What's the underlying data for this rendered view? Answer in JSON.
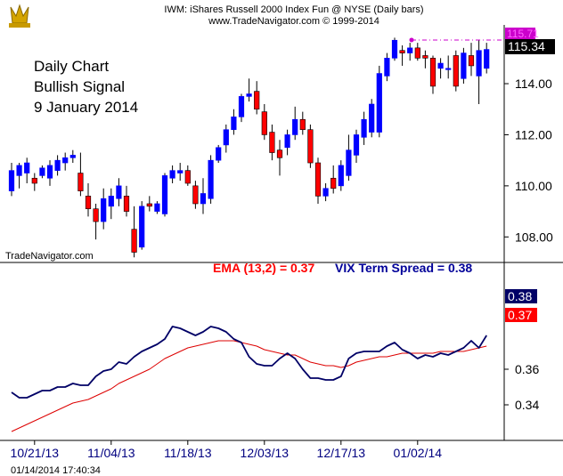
{
  "header": {
    "title": "IWM:  iShares Russell 2000 Index Fun @ NYSE  (Daily bars)",
    "copyright": "www.TradeNavigator.com © 1999-2014"
  },
  "annotation": [
    "Daily Chart",
    "Bullish Signal",
    "9 January 2014"
  ],
  "watermark": "TradeNavigator.com",
  "timestamp": "01/14/2014 17:40:34",
  "colors": {
    "up_bar": "#0000ff",
    "down_bar": "#ff0000",
    "vix_line": "#000066",
    "ema_line": "#dd0000",
    "ema_label": "#ff0000",
    "vix_label": "#000099",
    "high_marker": "#cc00cc",
    "current_badge": "#000000"
  },
  "chart_data": [
    {
      "type": "candlestick",
      "title": "IWM:  iShares Russell 2000 Index Fun @ NYSE  (Daily bars)",
      "y_ticks": [
        "108.00",
        "110.00",
        "112.00",
        "114.00"
      ],
      "ylim": [
        107.0,
        116.3
      ],
      "x_ticks": [
        "10/21/13",
        "11/04/13",
        "11/18/13",
        "12/03/13",
        "12/17/13",
        "01/02/14"
      ],
      "price_labels": {
        "last": "115.34",
        "high": "115.71"
      },
      "bars": [
        {
          "d": "10/16/13",
          "o": 109.8,
          "h": 110.9,
          "l": 109.6,
          "c": 110.6
        },
        {
          "d": "10/17/13",
          "o": 110.4,
          "h": 110.9,
          "l": 109.9,
          "c": 110.8
        },
        {
          "d": "10/18/13",
          "o": 110.5,
          "h": 111.1,
          "l": 110.1,
          "c": 110.9
        },
        {
          "d": "10/21/13",
          "o": 110.3,
          "h": 110.5,
          "l": 109.8,
          "c": 110.1
        },
        {
          "d": "10/22/13",
          "o": 110.4,
          "h": 110.8,
          "l": 110.3,
          "c": 110.7
        },
        {
          "d": "10/23/13",
          "o": 110.3,
          "h": 111.0,
          "l": 110.0,
          "c": 110.8
        },
        {
          "d": "10/24/13",
          "o": 110.6,
          "h": 111.2,
          "l": 110.4,
          "c": 111.0
        },
        {
          "d": "10/25/13",
          "o": 110.9,
          "h": 111.3,
          "l": 110.6,
          "c": 111.1
        },
        {
          "d": "10/28/13",
          "o": 111.1,
          "h": 111.4,
          "l": 110.9,
          "c": 111.2
        },
        {
          "d": "10/29/13",
          "o": 110.5,
          "h": 111.3,
          "l": 109.6,
          "c": 109.8
        },
        {
          "d": "10/30/13",
          "o": 109.6,
          "h": 110.1,
          "l": 108.8,
          "c": 109.1
        },
        {
          "d": "10/31/13",
          "o": 109.1,
          "h": 109.3,
          "l": 107.9,
          "c": 108.6
        },
        {
          "d": "11/01/13",
          "o": 108.6,
          "h": 109.9,
          "l": 108.3,
          "c": 109.5
        },
        {
          "d": "11/04/13",
          "o": 109.2,
          "h": 109.9,
          "l": 108.7,
          "c": 109.6
        },
        {
          "d": "11/05/13",
          "o": 109.5,
          "h": 110.3,
          "l": 109.2,
          "c": 110.0
        },
        {
          "d": "11/06/13",
          "o": 109.6,
          "h": 110.0,
          "l": 108.8,
          "c": 109.0
        },
        {
          "d": "11/07/13",
          "o": 108.3,
          "h": 109.2,
          "l": 107.2,
          "c": 107.4
        },
        {
          "d": "11/08/13",
          "o": 107.6,
          "h": 109.4,
          "l": 107.5,
          "c": 109.2
        },
        {
          "d": "11/11/13",
          "o": 109.3,
          "h": 109.6,
          "l": 109.0,
          "c": 109.2
        },
        {
          "d": "11/12/13",
          "o": 109.0,
          "h": 109.4,
          "l": 108.9,
          "c": 109.3
        },
        {
          "d": "11/13/13",
          "o": 108.9,
          "h": 110.5,
          "l": 108.8,
          "c": 110.4
        },
        {
          "d": "11/14/13",
          "o": 110.3,
          "h": 110.8,
          "l": 110.1,
          "c": 110.6
        },
        {
          "d": "11/15/13",
          "o": 110.5,
          "h": 110.9,
          "l": 110.2,
          "c": 110.6
        },
        {
          "d": "11/18/13",
          "o": 110.6,
          "h": 110.8,
          "l": 110.0,
          "c": 110.1
        },
        {
          "d": "11/19/13",
          "o": 110.0,
          "h": 110.2,
          "l": 109.1,
          "c": 109.3
        },
        {
          "d": "11/20/13",
          "o": 109.3,
          "h": 110.3,
          "l": 108.9,
          "c": 109.7
        },
        {
          "d": "11/21/13",
          "o": 109.5,
          "h": 111.2,
          "l": 109.3,
          "c": 111.0
        },
        {
          "d": "11/22/13",
          "o": 111.0,
          "h": 111.6,
          "l": 110.9,
          "c": 111.5
        },
        {
          "d": "11/25/13",
          "o": 111.6,
          "h": 112.4,
          "l": 111.3,
          "c": 112.2
        },
        {
          "d": "11/26/13",
          "o": 112.2,
          "h": 113.0,
          "l": 112.0,
          "c": 112.7
        },
        {
          "d": "11/27/13",
          "o": 112.7,
          "h": 113.6,
          "l": 112.5,
          "c": 113.5
        },
        {
          "d": "11/29/13",
          "o": 113.5,
          "h": 114.2,
          "l": 113.3,
          "c": 113.6
        },
        {
          "d": "12/02/13",
          "o": 113.7,
          "h": 114.1,
          "l": 112.8,
          "c": 113.0
        },
        {
          "d": "12/03/13",
          "o": 112.9,
          "h": 113.2,
          "l": 111.8,
          "c": 112.0
        },
        {
          "d": "12/04/13",
          "o": 112.1,
          "h": 112.4,
          "l": 111.0,
          "c": 111.3
        },
        {
          "d": "12/05/13",
          "o": 111.4,
          "h": 111.8,
          "l": 110.4,
          "c": 111.1
        },
        {
          "d": "12/06/13",
          "o": 111.5,
          "h": 112.2,
          "l": 111.2,
          "c": 112.0
        },
        {
          "d": "12/09/13",
          "o": 112.0,
          "h": 113.1,
          "l": 111.8,
          "c": 112.6
        },
        {
          "d": "12/10/13",
          "o": 112.6,
          "h": 112.9,
          "l": 112.0,
          "c": 112.2
        },
        {
          "d": "12/11/13",
          "o": 112.2,
          "h": 112.4,
          "l": 110.7,
          "c": 110.9
        },
        {
          "d": "12/12/13",
          "o": 110.9,
          "h": 111.1,
          "l": 109.3,
          "c": 109.6
        },
        {
          "d": "12/13/13",
          "o": 109.6,
          "h": 110.1,
          "l": 109.4,
          "c": 109.9
        },
        {
          "d": "12/16/13",
          "o": 110.3,
          "h": 110.8,
          "l": 109.7,
          "c": 109.9
        },
        {
          "d": "12/17/13",
          "o": 110.0,
          "h": 111.0,
          "l": 109.8,
          "c": 110.8
        },
        {
          "d": "12/18/13",
          "o": 110.4,
          "h": 112.0,
          "l": 110.2,
          "c": 111.4
        },
        {
          "d": "12/19/13",
          "o": 111.2,
          "h": 112.2,
          "l": 110.9,
          "c": 112.0
        },
        {
          "d": "12/20/13",
          "o": 111.9,
          "h": 112.9,
          "l": 111.6,
          "c": 112.6
        },
        {
          "d": "12/23/13",
          "o": 112.1,
          "h": 113.4,
          "l": 111.9,
          "c": 113.2
        },
        {
          "d": "12/24/13",
          "o": 112.1,
          "h": 114.7,
          "l": 111.9,
          "c": 114.4
        },
        {
          "d": "12/26/13",
          "o": 114.3,
          "h": 115.2,
          "l": 114.1,
          "c": 115.0
        },
        {
          "d": "12/27/13",
          "o": 115.0,
          "h": 115.8,
          "l": 114.9,
          "c": 115.7
        },
        {
          "d": "12/30/13",
          "o": 115.3,
          "h": 115.5,
          "l": 114.7,
          "c": 115.2
        },
        {
          "d": "12/31/13",
          "o": 115.2,
          "h": 115.6,
          "l": 114.9,
          "c": 115.4
        },
        {
          "d": "01/02/14",
          "o": 115.4,
          "h": 115.6,
          "l": 114.9,
          "c": 115.0
        },
        {
          "d": "01/03/14",
          "o": 115.1,
          "h": 115.3,
          "l": 114.6,
          "c": 115.0
        },
        {
          "d": "01/06/14",
          "o": 115.0,
          "h": 115.1,
          "l": 113.6,
          "c": 113.9
        },
        {
          "d": "01/07/14",
          "o": 114.6,
          "h": 115.0,
          "l": 114.2,
          "c": 114.8
        },
        {
          "d": "01/08/14",
          "o": 114.6,
          "h": 115.1,
          "l": 114.2,
          "c": 114.6
        },
        {
          "d": "01/09/14",
          "o": 115.1,
          "h": 115.3,
          "l": 113.7,
          "c": 113.9
        },
        {
          "d": "01/10/14",
          "o": 114.2,
          "h": 115.4,
          "l": 114.0,
          "c": 115.2
        },
        {
          "d": "01/13/14",
          "o": 115.1,
          "h": 115.6,
          "l": 114.3,
          "c": 114.7
        },
        {
          "d": "01/14/14",
          "o": 114.3,
          "h": 115.7,
          "l": 113.2,
          "c": 115.3
        },
        {
          "d": "01/15/14",
          "o": 114.6,
          "h": 115.6,
          "l": 114.4,
          "c": 115.34
        }
      ]
    },
    {
      "type": "line",
      "y_ticks": [
        "0.34",
        "0.36"
      ],
      "ylim": [
        0.32,
        0.42
      ],
      "series": [
        {
          "name": "VIX Term Spread",
          "label": "VIX Term Spread = 0.38",
          "current": "0.38",
          "values": [
            0.347,
            0.344,
            0.344,
            0.346,
            0.348,
            0.348,
            0.35,
            0.35,
            0.352,
            0.351,
            0.351,
            0.356,
            0.359,
            0.36,
            0.364,
            0.363,
            0.367,
            0.37,
            0.372,
            0.374,
            0.377,
            0.384,
            0.383,
            0.381,
            0.379,
            0.381,
            0.384,
            0.383,
            0.381,
            0.377,
            0.375,
            0.367,
            0.363,
            0.362,
            0.362,
            0.366,
            0.369,
            0.366,
            0.36,
            0.355,
            0.355,
            0.354,
            0.354,
            0.356,
            0.366,
            0.369,
            0.37,
            0.37,
            0.37,
            0.373,
            0.375,
            0.371,
            0.369,
            0.366,
            0.368,
            0.367,
            0.369,
            0.368,
            0.37,
            0.372,
            0.376,
            0.372,
            0.379
          ]
        },
        {
          "name": "EMA (13,2)",
          "label": "EMA (13,2) = 0.37",
          "current": "0.37",
          "values": [
            0.325,
            0.327,
            0.329,
            0.331,
            0.333,
            0.335,
            0.337,
            0.339,
            0.341,
            0.342,
            0.343,
            0.345,
            0.347,
            0.349,
            0.352,
            0.354,
            0.356,
            0.358,
            0.36,
            0.363,
            0.366,
            0.368,
            0.37,
            0.372,
            0.373,
            0.374,
            0.375,
            0.376,
            0.376,
            0.376,
            0.375,
            0.374,
            0.373,
            0.371,
            0.37,
            0.369,
            0.368,
            0.368,
            0.366,
            0.364,
            0.363,
            0.362,
            0.362,
            0.361,
            0.362,
            0.364,
            0.365,
            0.366,
            0.367,
            0.367,
            0.368,
            0.369,
            0.369,
            0.369,
            0.369,
            0.369,
            0.37,
            0.37,
            0.37,
            0.37,
            0.371,
            0.372,
            0.373
          ]
        }
      ]
    }
  ]
}
